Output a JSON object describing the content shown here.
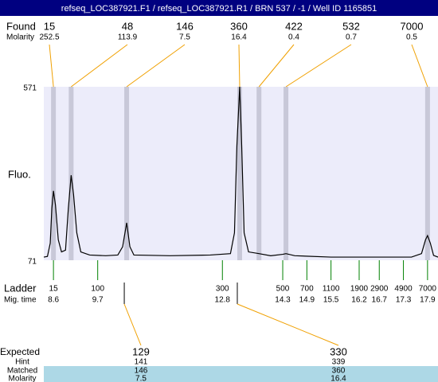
{
  "title": "refseq_LOC387921.F1 / refseq_LOC387921.R1 / BRN 537 / -1 / Well ID 1165851",
  "chart_data": {
    "type": "line",
    "y_label": "Fluo.",
    "xlim": [
      8.36,
      18.16
    ],
    "ylim": [
      71,
      571
    ],
    "yticks": [
      571,
      71
    ],
    "x": [
      8.36,
      8.45,
      8.52,
      8.56,
      8.6,
      8.65,
      8.72,
      8.8,
      8.9,
      8.97,
      9.04,
      9.1,
      9.18,
      9.28,
      9.5,
      9.9,
      10.2,
      10.32,
      10.42,
      10.5,
      10.6,
      11.5,
      12.5,
      13.0,
      13.1,
      13.16,
      13.23,
      13.28,
      13.34,
      13.45,
      13.71,
      14.0,
      14.3,
      14.38,
      14.6,
      15.5,
      16.5,
      17.5,
      17.75,
      17.85,
      17.9,
      17.97,
      18.05,
      18.16
    ],
    "values": [
      80,
      82,
      120,
      220,
      271,
      230,
      130,
      95,
      100,
      220,
      316,
      260,
      150,
      95,
      86,
      84,
      86,
      110,
      179,
      110,
      86,
      84,
      86,
      90,
      150,
      400,
      571,
      400,
      150,
      95,
      90,
      84,
      88,
      90,
      84,
      80,
      80,
      80,
      90,
      130,
      142,
      120,
      85,
      80
    ],
    "color": "#000000",
    "found": {
      "label": "Found",
      "molarity_label": "Molarity",
      "sizes": [
        15,
        48,
        146,
        360,
        422,
        532,
        7000
      ],
      "molarity": [
        252.5,
        113.9,
        7.5,
        16.4,
        0.4,
        0.7,
        0.5
      ],
      "x": [
        8.6,
        9.04,
        10.42,
        13.23,
        13.71,
        14.38,
        17.9
      ]
    },
    "ladder": {
      "label": "Ladder",
      "time_label": "Mig. time",
      "sizes": [
        15,
        100,
        300,
        500,
        700,
        1100,
        1900,
        2900,
        4900,
        7000
      ],
      "times": [
        8.6,
        9.7,
        12.8,
        14.3,
        14.9,
        15.5,
        16.2,
        16.7,
        17.3,
        17.9
      ]
    }
  },
  "expected": {
    "labels": [
      "Expected",
      "Hint",
      "Matched",
      "Molarity"
    ],
    "columns": [
      {
        "expected": 129,
        "hint": 141,
        "matched": 146,
        "molarity": 7.5
      },
      {
        "expected": 330,
        "hint": 339,
        "matched": 360,
        "molarity": 16.4
      }
    ]
  }
}
